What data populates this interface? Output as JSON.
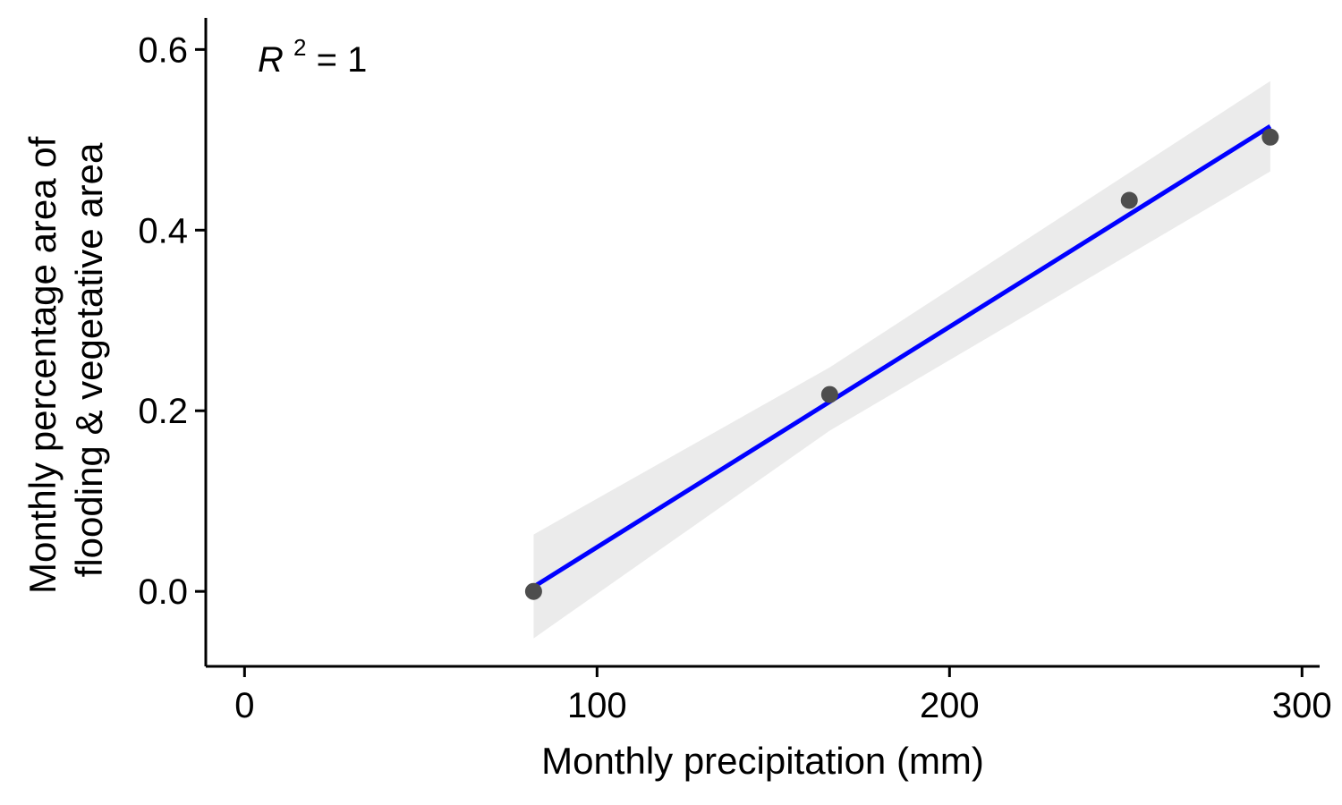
{
  "chart_data": {
    "type": "scatter",
    "xlabel": "Monthly precipitation (mm)",
    "ylabel_lines": [
      "Monthly percentage area of",
      "flooding & vegetative area"
    ],
    "xlim": [
      -11,
      305
    ],
    "ylim": [
      -0.083,
      0.635
    ],
    "x_ticks": [
      0,
      100,
      200,
      300
    ],
    "x_tick_labels": [
      "0",
      "100",
      "200",
      "300"
    ],
    "y_ticks": [
      0.0,
      0.2,
      0.4,
      0.6
    ],
    "y_tick_labels": [
      "0.0",
      "0.2",
      "0.4",
      "0.6"
    ],
    "points": [
      {
        "x": 82,
        "y": 0.0
      },
      {
        "x": 166,
        "y": 0.218
      },
      {
        "x": 251,
        "y": 0.433
      },
      {
        "x": 291,
        "y": 0.503
      }
    ],
    "fit": {
      "method": "linear",
      "start": {
        "x": 82,
        "y": 0.005
      },
      "end": {
        "x": 291,
        "y": 0.515
      },
      "color": "#0000ff",
      "ci_band": [
        {
          "x": 82,
          "lower": -0.052,
          "upper": 0.063
        },
        {
          "x": 166,
          "lower": 0.178,
          "upper": 0.248
        },
        {
          "x": 291,
          "lower": 0.465,
          "upper": 0.565
        }
      ],
      "ci_color": "#ebebeb"
    },
    "annotation": {
      "label": "R",
      "superscript": "2",
      "value": " = 1"
    },
    "grid": false,
    "point_color": "#4d4d4d"
  }
}
